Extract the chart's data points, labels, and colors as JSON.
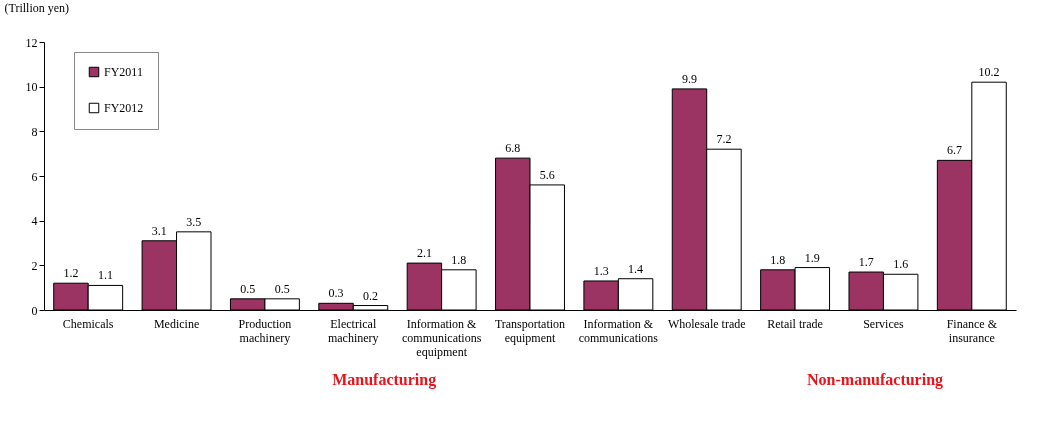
{
  "chart_data": {
    "type": "bar",
    "ylabel": "(Trillion yen)",
    "categories": [
      "Chemicals",
      "Medicine",
      "Production machinery",
      "Electrical machinery",
      "Information & communications equipment",
      "Transportation equipment",
      "Information & communications",
      "Wholesale trade",
      "Retail trade",
      "Services",
      "Finance & insurance"
    ],
    "series": [
      {
        "name": "FY2011",
        "color": "#9b3462",
        "values": [
          1.2,
          3.1,
          0.5,
          0.3,
          2.1,
          6.8,
          1.3,
          9.9,
          1.8,
          1.7,
          6.7
        ]
      },
      {
        "name": "FY2012",
        "color": "#ffffff",
        "values": [
          1.1,
          3.5,
          0.5,
          0.2,
          1.8,
          5.6,
          1.4,
          7.2,
          1.9,
          1.6,
          10.2
        ]
      }
    ],
    "ylim": [
      0,
      12
    ],
    "yticks": [
      0,
      2,
      4,
      6,
      8,
      10,
      12
    ],
    "grid": false,
    "legend": "top left",
    "data_labels": true,
    "annotations": [
      "Manufacturing",
      "Non-manufacturing"
    ]
  }
}
